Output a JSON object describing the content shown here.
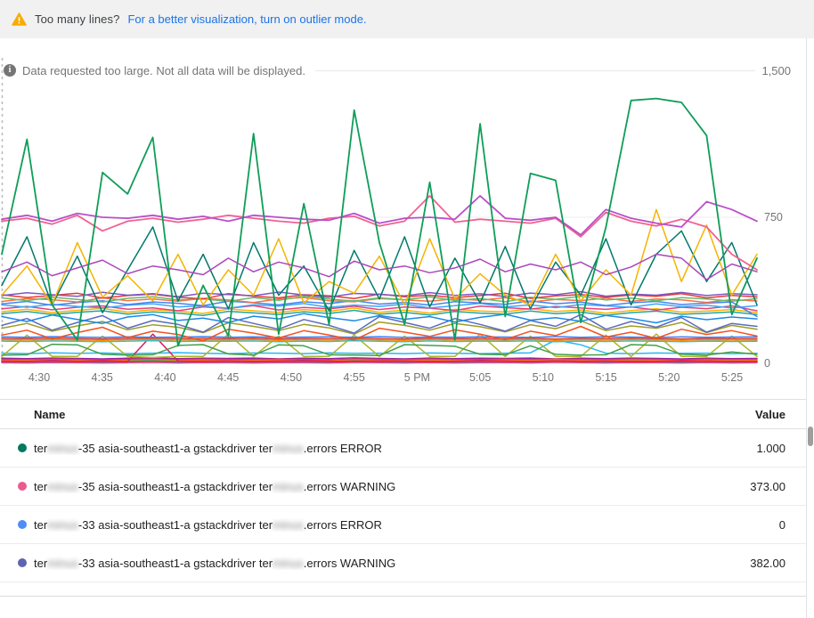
{
  "banner": {
    "warning_text": "Too many lines?",
    "link_text": "For a better visualization, turn on outlier mode.",
    "warning_color": "#f9ab00",
    "link_color": "#1a73e8"
  },
  "chart": {
    "notice": "Data requested too large. Not all data will be displayed."
  },
  "chart_data": {
    "type": "line",
    "title": "",
    "xlabel": "",
    "ylabel": "",
    "ylim": [
      0,
      1500
    ],
    "y_tick_labels": [
      "1,500",
      "750",
      "0"
    ],
    "x_ticks": [
      "4:30",
      "4:35",
      "4:40",
      "4:45",
      "4:50",
      "4:55",
      "5 PM",
      "5:05",
      "5:10",
      "5:15",
      "5:20",
      "5:25"
    ],
    "x_start": "4:27",
    "x_step_minutes": 2,
    "grid": "horizontal-only",
    "legend_position": "table-below",
    "series": [
      {
        "color": "#29B6F6",
        "values": [
          52,
          50,
          54,
          51,
          53,
          50,
          52,
          55,
          51,
          50,
          53,
          52,
          50,
          54,
          51,
          52,
          50,
          53,
          51,
          50,
          52,
          54,
          120,
          95,
          52,
          50,
          53,
          51,
          52,
          50,
          51
        ]
      },
      {
        "color": "#8E24AA",
        "values": [
          26,
          24,
          27,
          25,
          23,
          26,
          28,
          24,
          26,
          25,
          27,
          23,
          26,
          24,
          28,
          25,
          23,
          27,
          24,
          26,
          25,
          27,
          23,
          26,
          24,
          27,
          25,
          23,
          26,
          24,
          25
        ]
      },
      {
        "color": "#E53935",
        "values": [
          20,
          19,
          21,
          20,
          18,
          20,
          22,
          19,
          21,
          20,
          19,
          21,
          20,
          18,
          22,
          20,
          19,
          21,
          19,
          20,
          21,
          19,
          22,
          20,
          19,
          21,
          20,
          18,
          21,
          19,
          20
        ]
      },
      {
        "color": "#FB8C00",
        "values": [
          15,
          14,
          16,
          15,
          13,
          15,
          17,
          14,
          16,
          15,
          14,
          16,
          15,
          13,
          17,
          15,
          14,
          16,
          14,
          15,
          16,
          14,
          17,
          15,
          14,
          16,
          15,
          13,
          16,
          14,
          15
        ]
      },
      {
        "color": "#00897B",
        "values": [
          10,
          9,
          11,
          10,
          8,
          10,
          12,
          9,
          11,
          10,
          9,
          11,
          10,
          8,
          12,
          10,
          9,
          11,
          9,
          10,
          11,
          9,
          12,
          10,
          9,
          11,
          10,
          8,
          11,
          9,
          10
        ]
      },
      {
        "color": "#1E88E5",
        "values": [
          6,
          5,
          7,
          6,
          4,
          6,
          8,
          5,
          7,
          6,
          5,
          7,
          6,
          4,
          8,
          6,
          5,
          7,
          5,
          6,
          7,
          5,
          8,
          6,
          5,
          7,
          6,
          4,
          7,
          5,
          6
        ]
      },
      {
        "color": "#EC407A",
        "values": [
          3,
          2,
          4,
          3,
          2,
          3,
          5,
          2,
          4,
          3,
          2,
          4,
          3,
          2,
          5,
          3,
          2,
          4,
          2,
          3,
          4,
          2,
          5,
          3,
          2,
          4,
          3,
          2,
          4,
          2,
          3
        ]
      },
      {
        "color": "#D81B60",
        "values": [
          12,
          10,
          14,
          11,
          13,
          10,
          150,
          12,
          11,
          13,
          10,
          12,
          14,
          11,
          10,
          13,
          12,
          10,
          11,
          14,
          12,
          10,
          13,
          11,
          12,
          10,
          11,
          13,
          12,
          10,
          11
        ]
      },
      {
        "color": "#AFB42B",
        "values": [
          35,
          145,
          35,
          35,
          140,
          35,
          30,
          35,
          35,
          150,
          35,
          140,
          35,
          35,
          145,
          35,
          140,
          35,
          35,
          150,
          35,
          140,
          35,
          35,
          145,
          35,
          150,
          35,
          35,
          140,
          35
        ]
      },
      {
        "color": "#43A047",
        "values": [
          42,
          44,
          98,
          95,
          46,
          42,
          44,
          92,
          96,
          48,
          42,
          95,
          90,
          44,
          42,
          40,
          96,
          92,
          88,
          46,
          44,
          90,
          46,
          42,
          44,
          96,
          92,
          46,
          42,
          58,
          46
        ]
      },
      {
        "color": "#26C6DA",
        "values": [
          114,
          112,
          115,
          113,
          111,
          114,
          116,
          112,
          114,
          113,
          115,
          111,
          114,
          112,
          116,
          113,
          111,
          115,
          112,
          114,
          113,
          115,
          111,
          114,
          112,
          115,
          113,
          111,
          114,
          112,
          113
        ]
      },
      {
        "color": "#FB8C00",
        "values": [
          121,
          119,
          122,
          120,
          118,
          121,
          123,
          119,
          121,
          120,
          122,
          118,
          121,
          119,
          123,
          120,
          118,
          122,
          119,
          121,
          120,
          122,
          118,
          121,
          119,
          122,
          120,
          118,
          121,
          119,
          120
        ]
      },
      {
        "color": "#DB4437",
        "values": [
          128,
          126,
          129,
          127,
          125,
          128,
          130,
          126,
          128,
          127,
          129,
          125,
          128,
          126,
          130,
          127,
          125,
          129,
          126,
          128,
          127,
          129,
          125,
          128,
          126,
          129,
          127,
          125,
          128,
          126,
          127
        ]
      },
      {
        "color": "#4285F4",
        "values": [
          136,
          134,
          137,
          135,
          133,
          136,
          134,
          135,
          137,
          134,
          136,
          133,
          135,
          136,
          134,
          137,
          133,
          135,
          134,
          136,
          135,
          133,
          137,
          134,
          136,
          135,
          133,
          136,
          134,
          135,
          136
        ]
      },
      {
        "color": "#F4511E",
        "values": [
          145,
          170,
          125,
          158,
          185,
          132,
          165,
          148,
          115,
          175,
          155,
          130,
          168,
          145,
          120,
          180,
          160,
          138,
          172,
          150,
          122,
          165,
          142,
          190,
          135,
          160,
          128,
          175,
          148,
          168,
          140
        ]
      },
      {
        "color": "#9E9D24",
        "values": [
          180,
          205,
          165,
          192,
          215,
          172,
          198,
          185,
          158,
          208,
          190,
          168,
          200,
          182,
          150,
          212,
          195,
          170,
          205,
          188,
          162,
          198,
          178,
          218,
          168,
          192,
          180,
          210,
          158,
          195,
          175
        ]
      },
      {
        "color": "#5C6BC0",
        "values": [
          195,
          230,
          170,
          210,
          245,
          180,
          220,
          200,
          160,
          235,
          205,
          175,
          225,
          195,
          155,
          240,
          210,
          180,
          230,
          200,
          165,
          220,
          190,
          250,
          175,
          215,
          185,
          235,
          160,
          205,
          190
        ]
      },
      {
        "color": "#1E88E5",
        "values": [
          240,
          215,
          248,
          225,
          205,
          238,
          250,
          220,
          232,
          210,
          242,
          228,
          255,
          235,
          218,
          245,
          226,
          240,
          212,
          236,
          252,
          222,
          234,
          216,
          246,
          230,
          208,
          242,
          224,
          238,
          228
        ]
      },
      {
        "color": "#26A69A",
        "values": [
          255,
          266,
          250,
          262,
          270,
          253,
          264,
          258,
          246,
          267,
          259,
          251,
          265,
          256,
          272,
          252,
          262,
          248,
          266,
          258,
          253,
          269,
          255,
          263,
          247,
          260,
          268,
          252,
          257,
          264,
          250
        ]
      },
      {
        "color": "#FFB300",
        "values": [
          265,
          278,
          260,
          272,
          282,
          263,
          275,
          268,
          256,
          279,
          270,
          261,
          276,
          267,
          284,
          262,
          273,
          258,
          277,
          269,
          264,
          281,
          266,
          274,
          257,
          271,
          280,
          263,
          268,
          276,
          260
        ]
      },
      {
        "color": "#EC407A",
        "values": [
          280,
          292,
          275,
          288,
          295,
          278,
          285,
          270,
          290,
          282,
          296,
          274,
          287,
          280,
          293,
          276,
          289,
          283,
          271,
          294,
          286,
          279,
          292,
          284,
          277,
          290,
          273,
          288,
          281,
          295,
          270
        ]
      },
      {
        "color": "#42A5F5",
        "values": [
          300,
          288,
          303,
          292,
          285,
          298,
          306,
          290,
          295,
          283,
          301,
          294,
          307,
          287,
          299,
          292,
          304,
          285,
          296,
          308,
          290,
          300,
          286,
          302,
          295,
          288,
          305,
          291,
          298,
          284,
          296
        ]
      },
      {
        "color": "#4285F4",
        "values": [
          305,
          318,
          298,
          312,
          321,
          302,
          315,
          308,
          296,
          319,
          311,
          300,
          316,
          307,
          322,
          304,
          313,
          299,
          317,
          310,
          303,
          320,
          306,
          314,
          297,
          311,
          318,
          302,
          309,
          315,
          240
        ]
      },
      {
        "color": "#FF7043",
        "values": [
          318,
          332,
          327,
          315,
          336,
          322,
          330,
          319,
          334,
          325,
          312,
          330,
          338,
          321,
          316,
          333,
          326,
          319,
          331,
          324,
          337,
          315,
          328,
          322,
          335,
          318,
          330,
          326,
          313,
          327,
          320
        ]
      },
      {
        "color": "#66BB6A",
        "values": [
          336,
          322,
          340,
          328,
          315,
          334,
          342,
          326,
          331,
          318,
          338,
          324,
          345,
          330,
          320,
          336,
          327,
          341,
          323,
          333,
          316,
          339,
          329,
          344,
          325,
          335,
          321,
          337,
          330,
          319,
          332
        ]
      },
      {
        "color": "#E53935",
        "values": [
          352,
          338,
          349,
          360,
          335,
          348,
          355,
          340,
          330,
          358,
          345,
          336,
          352,
          347,
          333,
          356,
          342,
          350,
          337,
          348,
          360,
          334,
          346,
          353,
          339,
          351,
          344,
          358,
          336,
          349,
          341
        ]
      },
      {
        "color": "#7E57C2",
        "values": [
          348,
          362,
          352,
          344,
          365,
          350,
          358,
          342,
          360,
          353,
          347,
          366,
          351,
          340,
          359,
          354,
          346,
          363,
          349,
          357,
          343,
          361,
          352,
          368,
          345,
          356,
          350,
          364,
          348,
          358,
          352
        ]
      },
      {
        "color": "#00796B",
        "values": [
          400,
          650,
          300,
          550,
          260,
          480,
          700,
          320,
          560,
          280,
          620,
          350,
          500,
          270,
          580,
          330,
          650,
          290,
          540,
          310,
          600,
          280,
          520,
          350,
          640,
          300,
          560,
          680,
          420,
          620,
          300
        ]
      },
      {
        "color": "#F4B400",
        "values": [
          350,
          500,
          300,
          620,
          340,
          450,
          320,
          560,
          300,
          480,
          350,
          640,
          310,
          420,
          360,
          550,
          300,
          640,
          330,
          460,
          350,
          300,
          560,
          320,
          480,
          350,
          790,
          420,
          710,
          350,
          560
        ]
      },
      {
        "color": "#AB47BC",
        "values": [
          470,
          520,
          450,
          490,
          530,
          460,
          500,
          480,
          455,
          540,
          470,
          520,
          490,
          445,
          525,
          480,
          500,
          465,
          490,
          535,
          470,
          510,
          480,
          520,
          455,
          495,
          560,
          540,
          430,
          510,
          470
        ]
      },
      {
        "color": "#F06292",
        "w": 1.8,
        "values": [
          730,
          745,
          715,
          760,
          680,
          730,
          745,
          725,
          740,
          760,
          745,
          730,
          720,
          745,
          755,
          705,
          730,
          860,
          725,
          740,
          730,
          720,
          745,
          650,
          775,
          730,
          705,
          740,
          700,
          560,
          480
        ]
      },
      {
        "color": "#BA4FC9",
        "w": 1.8,
        "values": [
          740,
          760,
          730,
          770,
          750,
          745,
          760,
          740,
          755,
          730,
          760,
          750,
          740,
          735,
          770,
          720,
          745,
          750,
          740,
          860,
          745,
          735,
          750,
          660,
          790,
          745,
          720,
          700,
          830,
          790,
          730
        ]
      },
      {
        "color": "#0F9D58",
        "w": 1.8,
        "values": [
          560,
          1150,
          300,
          120,
          980,
          870,
          1160,
          90,
          400,
          140,
          1180,
          150,
          820,
          200,
          1300,
          620,
          200,
          930,
          120,
          1230,
          240,
          975,
          940,
          210,
          700,
          1350,
          1360,
          1340,
          1170,
          250,
          540
        ]
      }
    ]
  },
  "table": {
    "header": {
      "name": "Name",
      "value": "Value"
    },
    "rows": [
      {
        "color": "#00795f",
        "prefix": "ter",
        "redacted1": "minus",
        "mid": "-35 asia-southeast1-a gstackdriver ter",
        "redacted2": "minus",
        "suffix": ".errors ERROR",
        "value": "1.000"
      },
      {
        "color": "#ea5b8f",
        "prefix": "ter",
        "redacted1": "minus",
        "mid": "-35 asia-southeast1-a gstackdriver ter",
        "redacted2": "minus",
        "suffix": ".errors WARNING",
        "value": "373.00"
      },
      {
        "color": "#4e8df6",
        "prefix": "ter",
        "redacted1": "minus",
        "mid": "-33 asia-southeast1-a gstackdriver ter",
        "redacted2": "minus",
        "suffix": ".errors ERROR",
        "value": "0"
      },
      {
        "color": "#5f63b3",
        "prefix": "ter",
        "redacted1": "minus",
        "mid": "-33 asia-southeast1-a gstackdriver ter",
        "redacted2": "minus",
        "suffix": ".errors WARNING",
        "value": "382.00"
      }
    ]
  }
}
